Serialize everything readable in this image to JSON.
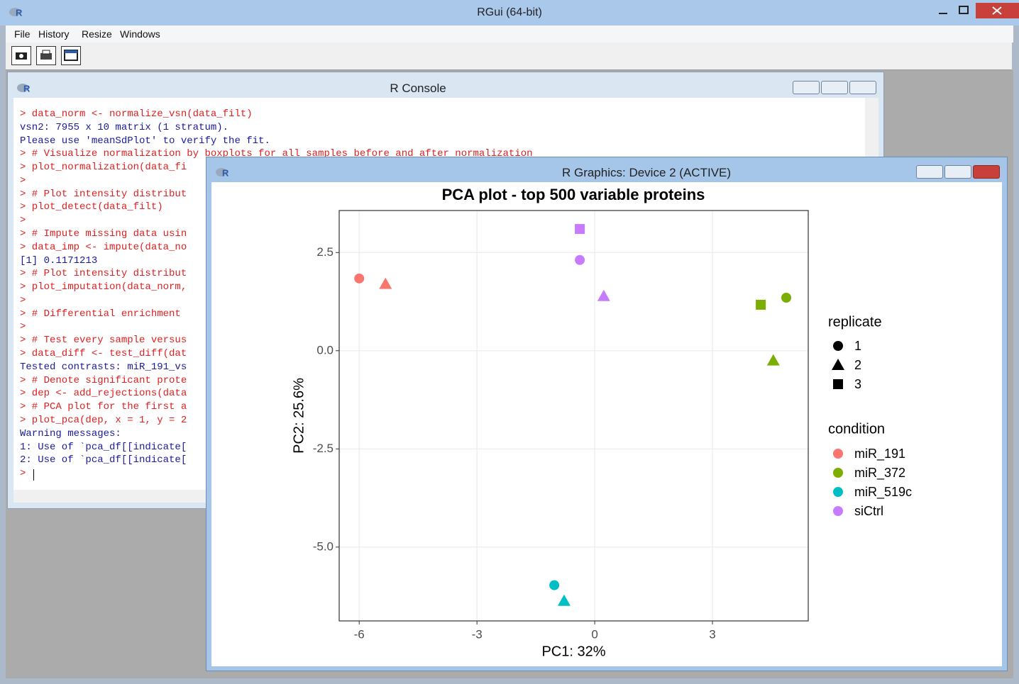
{
  "rgui": {
    "title": "RGui (64-bit)",
    "menu": [
      "File",
      "History",
      "Resize",
      "Windows"
    ]
  },
  "console": {
    "title": "R Console",
    "lines": [
      {
        "text": "> data_norm <- normalize_vsn(data_filt)",
        "color": "#e02020"
      },
      {
        "text": "vsn2: 7955 x 10 matrix (1 stratum).",
        "color": "#1a1a9c"
      },
      {
        "text": "Please use 'meanSdPlot' to verify the fit.",
        "color": "#1a1a9c"
      },
      {
        "text": "> # Visualize normalization by boxplots for all samples before and after normalization",
        "color": "#e02020"
      },
      {
        "text": "> plot_normalization(data_fi",
        "color": "#e02020"
      },
      {
        "text": ">",
        "color": "#e02020"
      },
      {
        "text": "> # Plot intensity distribut",
        "color": "#e02020"
      },
      {
        "text": "> plot_detect(data_filt)",
        "color": "#e02020"
      },
      {
        "text": ">",
        "color": "#e02020"
      },
      {
        "text": "> # Impute missing data usin",
        "color": "#e02020"
      },
      {
        "text": "> data_imp <- impute(data_no",
        "color": "#e02020"
      },
      {
        "text": "[1] 0.1171213",
        "color": "#1a1a9c"
      },
      {
        "text": "> # Plot intensity distribut",
        "color": "#e02020"
      },
      {
        "text": "> plot_imputation(data_norm,",
        "color": "#e02020"
      },
      {
        "text": ">",
        "color": "#e02020"
      },
      {
        "text": "> # Differential enrichment",
        "color": "#e02020"
      },
      {
        "text": ">",
        "color": "#e02020"
      },
      {
        "text": "> # Test every sample versus",
        "color": "#e02020"
      },
      {
        "text": "> data_diff <- test_diff(dat",
        "color": "#e02020"
      },
      {
        "text": "Tested contrasts: miR_191_vs",
        "color": "#1a1a9c"
      },
      {
        "text": "> # Denote significant prote",
        "color": "#e02020"
      },
      {
        "text": "> dep <- add_rejections(data",
        "color": "#e02020"
      },
      {
        "text": "> # PCA plot for the first a",
        "color": "#e02020"
      },
      {
        "text": "> plot_pca(dep, x = 1, y = 2",
        "color": "#e02020"
      },
      {
        "text": "Warning messages:",
        "color": "#1a1a9c"
      },
      {
        "text": "1: Use of `pca_df[[indicate[",
        "color": "#1a1a9c"
      },
      {
        "text": "2: Use of `pca_df[[indicate[",
        "color": "#1a1a9c"
      },
      {
        "text": ">",
        "color": "#e02020"
      }
    ]
  },
  "graphics_window": {
    "title": "R Graphics: Device 2 (ACTIVE)"
  },
  "chart_data": {
    "type": "scatter",
    "title": "PCA plot - top 500 variable proteins",
    "x_label": "PC1: 32%",
    "y_label": "PC2: 25.6%",
    "xlim": [
      -6.51,
      5.44
    ],
    "ylim": [
      -6.88,
      3.57
    ],
    "xticks": [
      -6,
      -3,
      0,
      3
    ],
    "yticks": [
      2.5,
      {
        "value": 0,
        "label": "0.0"
      },
      -2.5,
      {
        "value": -5,
        "label": "-5.0"
      }
    ],
    "grid": true,
    "shape_legend": {
      "title": "replicate",
      "entries": [
        {
          "label": "1",
          "shape": "circle"
        },
        {
          "label": "2",
          "shape": "triangle"
        },
        {
          "label": "3",
          "shape": "square"
        }
      ]
    },
    "color_legend_title": "condition",
    "series": [
      {
        "name": "miR_191",
        "color": "#F8766D",
        "x": [
          -6.0,
          -5.33
        ],
        "values": [
          1.84,
          1.7
        ],
        "shapes": [
          "circle",
          "triangle"
        ]
      },
      {
        "name": "miR_372",
        "color": "#7CAE00",
        "x": [
          4.88,
          4.55,
          4.23
        ],
        "values": [
          1.35,
          -0.25,
          1.17
        ],
        "shapes": [
          "circle",
          "triangle",
          "square"
        ]
      },
      {
        "name": "miR_519c",
        "color": "#00BFC4",
        "x": [
          -1.03,
          -0.78
        ],
        "values": [
          -5.97,
          -6.37
        ],
        "shapes": [
          "circle",
          "triangle"
        ]
      },
      {
        "name": "siCtrl",
        "color": "#C77CFF",
        "x": [
          -0.38,
          0.23,
          -0.38
        ],
        "values": [
          2.31,
          1.39,
          3.1
        ],
        "shapes": [
          "circle",
          "triangle",
          "square"
        ]
      }
    ]
  }
}
